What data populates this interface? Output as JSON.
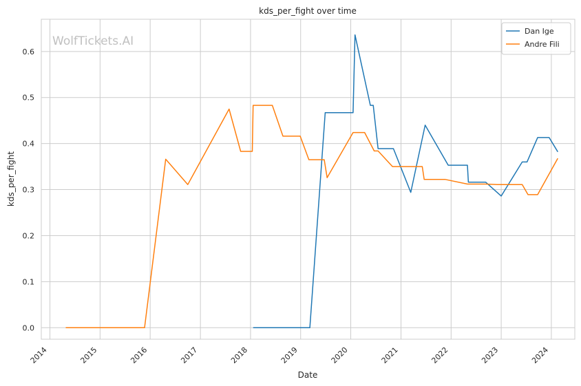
{
  "chart_data": {
    "type": "line",
    "title": "kds_per_fight over time",
    "xlabel": "Date",
    "ylabel": "kds_per_fight",
    "watermark": "WolfTickets.AI",
    "x_ticks": [
      "2014",
      "2015",
      "2016",
      "2017",
      "2018",
      "2019",
      "2020",
      "2021",
      "2022",
      "2023",
      "2024"
    ],
    "y_ticks": [
      "0.0",
      "0.1",
      "0.2",
      "0.3",
      "0.4",
      "0.5",
      "0.6"
    ],
    "xlim": [
      "2013-10-30",
      "2024-06-20"
    ],
    "ylim": [
      -0.025,
      0.67
    ],
    "grid": true,
    "legend_position": "top-right",
    "series": [
      {
        "name": "Dan Ige",
        "color": "#1f77b4",
        "x": [
          "2018-01-20",
          "2019-03-09",
          "2019-06-29",
          "2020-01-18",
          "2020-02-01",
          "2020-05-23",
          "2020-06-13",
          "2020-07-18",
          "2020-11-07",
          "2021-03-13",
          "2021-06-26",
          "2021-12-11",
          "2022-04-30",
          "2022-05-07",
          "2022-09-10",
          "2023-01-01",
          "2023-06-03",
          "2023-07-08",
          "2023-09-23",
          "2023-12-16",
          "2024-02-17"
        ],
        "y": [
          0.0,
          0.0,
          0.467,
          0.467,
          0.636,
          0.483,
          0.483,
          0.389,
          0.389,
          0.294,
          0.44,
          0.353,
          0.353,
          0.316,
          0.316,
          0.286,
          0.36,
          0.36,
          0.413,
          0.413,
          0.382
        ]
      },
      {
        "name": "Andre Fili",
        "color": "#ff7f0e",
        "x": [
          "2014-04-26",
          "2015-11-21",
          "2016-04-23",
          "2016-10-01",
          "2017-07-29",
          "2017-10-21",
          "2018-01-14",
          "2018-01-20",
          "2018-06-09",
          "2018-08-25",
          "2018-12-29",
          "2019-03-02",
          "2019-06-22",
          "2019-07-13",
          "2020-01-18",
          "2020-04-11",
          "2020-06-20",
          "2020-07-18",
          "2020-10-31",
          "2021-06-05",
          "2021-06-19",
          "2021-11-20",
          "2022-04-30",
          "2022-09-10",
          "2022-12-03",
          "2023-06-03",
          "2023-07-15",
          "2023-09-23",
          "2024-02-17"
        ],
        "y": [
          0.0,
          0.0,
          0.366,
          0.311,
          0.475,
          0.383,
          0.383,
          0.483,
          0.483,
          0.416,
          0.416,
          0.365,
          0.365,
          0.326,
          0.424,
          0.424,
          0.384,
          0.384,
          0.35,
          0.35,
          0.322,
          0.322,
          0.312,
          0.312,
          0.311,
          0.311,
          0.289,
          0.289,
          0.368
        ]
      }
    ]
  }
}
